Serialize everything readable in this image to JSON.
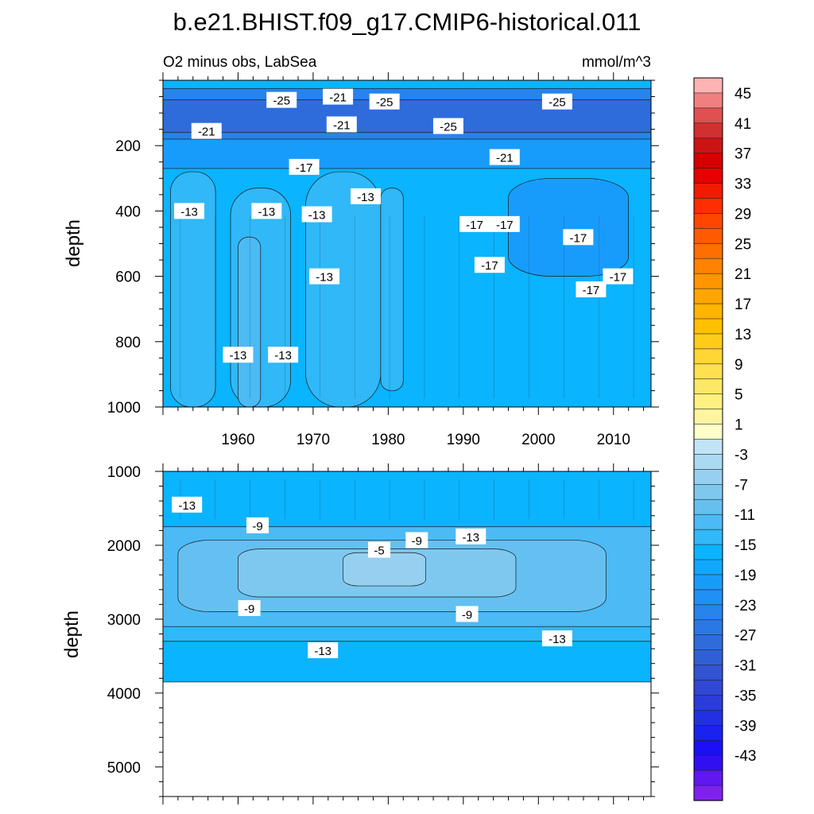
{
  "title": "b.e21.BHIST.f09_g17.CMIP6-historical.011",
  "subtitle_left": "O2 minus obs, LabSea",
  "units": "mmol/m^3",
  "colors": {
    "white": "#ffffff",
    "axis": "#000000",
    "contour_line": "#1a1a1a",
    "label_bg": "#ffffff"
  },
  "chart_data": [
    {
      "type": "heatmap",
      "panel": "upper",
      "ylabel": "depth",
      "xlim": [
        1950,
        2015
      ],
      "ylim": [
        1000,
        0
      ],
      "x_ticks": [
        1960,
        1970,
        1980,
        1990,
        2000,
        2010
      ],
      "y_ticks": [
        200,
        400,
        600,
        800,
        1000
      ],
      "data_depth_range": [
        0,
        1000
      ],
      "background_fill_level": -15,
      "regions": [
        {
          "level": -23,
          "x": [
            1950,
            2015
          ],
          "y": [
            25,
            200
          ]
        },
        {
          "level": -27,
          "x": [
            1950,
            2015
          ],
          "y": [
            60,
            160
          ]
        },
        {
          "level": -19,
          "x": [
            1950,
            2015
          ],
          "y": [
            180,
            270
          ]
        },
        {
          "level": -13,
          "x": [
            1951,
            1957
          ],
          "y": [
            280,
            1000
          ]
        },
        {
          "level": -13,
          "x": [
            1959,
            1967
          ],
          "y": [
            330,
            1000
          ]
        },
        {
          "level": -13,
          "x": [
            1969,
            1979
          ],
          "y": [
            280,
            1000
          ]
        },
        {
          "level": -13,
          "x": [
            1979,
            1982
          ],
          "y": [
            330,
            950
          ]
        },
        {
          "level": -11,
          "x": [
            1960,
            1963
          ],
          "y": [
            480,
            1000
          ]
        },
        {
          "level": -19,
          "x": [
            1996,
            2012
          ],
          "y": [
            300,
            600
          ]
        }
      ],
      "contour_labels": [
        {
          "text": "-25",
          "x": 1965.8,
          "y": 60
        },
        {
          "text": "-21",
          "x": 1973.3,
          "y": 50
        },
        {
          "text": "-25",
          "x": 1979.5,
          "y": 65
        },
        {
          "text": "-25",
          "x": 2002.5,
          "y": 65
        },
        {
          "text": "-21",
          "x": 1955.8,
          "y": 155
        },
        {
          "text": "-21",
          "x": 1973.8,
          "y": 135
        },
        {
          "text": "-25",
          "x": 1988.0,
          "y": 140
        },
        {
          "text": "-21",
          "x": 1995.5,
          "y": 235
        },
        {
          "text": "-17",
          "x": 1968.8,
          "y": 265
        },
        {
          "text": "-13",
          "x": 1953.5,
          "y": 400
        },
        {
          "text": "-13",
          "x": 1963.8,
          "y": 400
        },
        {
          "text": "-13",
          "x": 1970.5,
          "y": 410
        },
        {
          "text": "-13",
          "x": 1977.0,
          "y": 355
        },
        {
          "text": "-17",
          "x": 1991.5,
          "y": 440
        },
        {
          "text": "-17",
          "x": 1995.5,
          "y": 440
        },
        {
          "text": "-17",
          "x": 2005.3,
          "y": 480
        },
        {
          "text": "-17",
          "x": 1993.5,
          "y": 565
        },
        {
          "text": "-13",
          "x": 1971.5,
          "y": 600
        },
        {
          "text": "-17",
          "x": 2007.0,
          "y": 640
        },
        {
          "text": "-17",
          "x": 2010.6,
          "y": 600
        },
        {
          "text": "-13",
          "x": 1960.0,
          "y": 840
        },
        {
          "text": "-13",
          "x": 1966.0,
          "y": 840
        }
      ]
    },
    {
      "type": "heatmap",
      "panel": "lower",
      "ylabel": "depth",
      "xlim": [
        1950,
        2015
      ],
      "ylim": [
        5400,
        1000
      ],
      "x_ticks": [
        1960,
        1970,
        1980,
        1990,
        2000,
        2010
      ],
      "y_ticks": [
        1000,
        2000,
        3000,
        4000,
        5000
      ],
      "data_depth_range": [
        1000,
        3850
      ],
      "background_fill_level": -11,
      "regions": [
        {
          "level": -15,
          "x": [
            1950,
            2015
          ],
          "y": [
            1000,
            1750
          ]
        },
        {
          "level": -9,
          "x": [
            1952,
            2009
          ],
          "y": [
            1930,
            2900
          ]
        },
        {
          "level": -7,
          "x": [
            1960,
            1997
          ],
          "y": [
            2050,
            2700
          ]
        },
        {
          "level": -5,
          "x": [
            1974,
            1985
          ],
          "y": [
            2100,
            2550
          ]
        },
        {
          "level": -13,
          "x": [
            1950,
            2015
          ],
          "y": [
            3100,
            3300
          ]
        },
        {
          "level": -15,
          "x": [
            1950,
            2015
          ],
          "y": [
            3300,
            3850
          ]
        }
      ],
      "contour_labels": [
        {
          "text": "-13",
          "x": 1953.2,
          "y": 1450
        },
        {
          "text": "-9",
          "x": 1962.6,
          "y": 1730
        },
        {
          "text": "-9",
          "x": 1983.8,
          "y": 1930
        },
        {
          "text": "-13",
          "x": 1991.0,
          "y": 1880
        },
        {
          "text": "-5",
          "x": 1978.8,
          "y": 2060
        },
        {
          "text": "-9",
          "x": 1961.5,
          "y": 2850
        },
        {
          "text": "-9",
          "x": 1990.5,
          "y": 2930
        },
        {
          "text": "-13",
          "x": 2002.5,
          "y": 3260
        },
        {
          "text": "-13",
          "x": 1971.3,
          "y": 3420
        }
      ]
    }
  ],
  "colorbar": {
    "labels": [
      "45",
      "41",
      "37",
      "33",
      "29",
      "25",
      "21",
      "17",
      "13",
      "9",
      "5",
      "1",
      "-3",
      "-7",
      "-11",
      "-15",
      "-19",
      "-23",
      "-27",
      "-31",
      "-35",
      "-39",
      "-43"
    ],
    "levels_top_to_bottom": [
      47,
      45,
      43,
      41,
      39,
      37,
      35,
      33,
      31,
      29,
      27,
      25,
      23,
      21,
      19,
      17,
      15,
      13,
      11,
      9,
      7,
      5,
      3,
      1,
      -1,
      -3,
      -5,
      -7,
      -9,
      -11,
      -13,
      -15,
      -17,
      -19,
      -21,
      -23,
      -25,
      -27,
      -29,
      -31,
      -33,
      -35,
      -37,
      -39,
      -41,
      -43,
      -45
    ],
    "colors": [
      "#ffb3b3",
      "#f08080",
      "#e05050",
      "#d03030",
      "#cc1414",
      "#d60000",
      "#e60000",
      "#f21a00",
      "#ff2e00",
      "#ff4600",
      "#ff5a00",
      "#ff6e00",
      "#ff8200",
      "#ff9600",
      "#ffa500",
      "#ffb400",
      "#ffc000",
      "#ffcc1a",
      "#ffd633",
      "#ffe04d",
      "#ffe866",
      "#fff080",
      "#fff5a0",
      "#ffffc8",
      "#c0e4f5",
      "#aadaf2",
      "#96d0f0",
      "#7ec8f0",
      "#64c0f0",
      "#4cbaf5",
      "#30b8f8",
      "#0ab4ff",
      "#10a8ff",
      "#189cfc",
      "#2090f5",
      "#2684ec",
      "#2a78e4",
      "#2e6cdc",
      "#3060d6",
      "#3254d2",
      "#3048d4",
      "#2a3cda",
      "#2230e4",
      "#1a22f0",
      "#1a10f5",
      "#3010f0",
      "#6018f0",
      "#8020f0"
    ]
  }
}
